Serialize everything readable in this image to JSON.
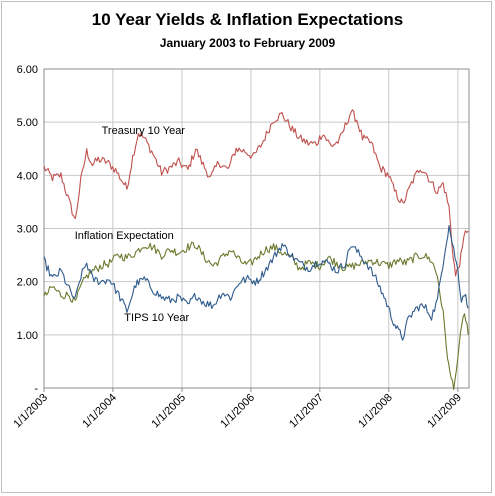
{
  "chart_data": {
    "type": "line",
    "title": "10 Year Yields & Inflation Expectations",
    "subtitle": "January 2003  to February 2009",
    "xlabel": "",
    "ylabel": "",
    "ylim": [
      0,
      6
    ],
    "yticks": [
      {
        "value": 0,
        "label": "-"
      },
      {
        "value": 1,
        "label": "1.00"
      },
      {
        "value": 2,
        "label": "2.00"
      },
      {
        "value": 3,
        "label": "3.00"
      },
      {
        "value": 4,
        "label": "4.00"
      },
      {
        "value": 5,
        "label": "5.00"
      },
      {
        "value": 6,
        "label": "6.00"
      }
    ],
    "xlim": [
      "2003-01-01",
      "2009-03-01"
    ],
    "xticks": [
      {
        "date": "2003-01-01",
        "label": "1/1/2003"
      },
      {
        "date": "2004-01-01",
        "label": "1/1/2004"
      },
      {
        "date": "2005-01-01",
        "label": "1/1/2005"
      },
      {
        "date": "2006-01-01",
        "label": "1/1/2006"
      },
      {
        "date": "2007-01-01",
        "label": "1/1/2007"
      },
      {
        "date": "2008-01-01",
        "label": "1/1/2008"
      },
      {
        "date": "2009-01-01",
        "label": "1/1/2009"
      }
    ],
    "grid": "horizontal",
    "legend": "none",
    "series": [
      {
        "name": "Treasury 10 Year",
        "color": "#c0504d",
        "points": [
          [
            "2003-01-01",
            4.15
          ],
          [
            "2003-02-15",
            3.95
          ],
          [
            "2003-04-01",
            4.0
          ],
          [
            "2003-05-15",
            3.5
          ],
          [
            "2003-06-15",
            3.15
          ],
          [
            "2003-07-15",
            3.9
          ],
          [
            "2003-08-15",
            4.45
          ],
          [
            "2003-09-15",
            4.2
          ],
          [
            "2003-10-15",
            4.3
          ],
          [
            "2003-12-01",
            4.25
          ],
          [
            "2004-01-15",
            4.1
          ],
          [
            "2004-03-15",
            3.75
          ],
          [
            "2004-04-15",
            4.35
          ],
          [
            "2004-05-15",
            4.8
          ],
          [
            "2004-06-15",
            4.7
          ],
          [
            "2004-08-01",
            4.4
          ],
          [
            "2004-09-15",
            4.05
          ],
          [
            "2004-11-01",
            4.15
          ],
          [
            "2004-12-15",
            4.25
          ],
          [
            "2005-02-01",
            4.1
          ],
          [
            "2005-03-15",
            4.5
          ],
          [
            "2005-04-15",
            4.25
          ],
          [
            "2005-06-01",
            3.95
          ],
          [
            "2005-07-15",
            4.25
          ],
          [
            "2005-09-01",
            4.1
          ],
          [
            "2005-10-15",
            4.5
          ],
          [
            "2005-12-01",
            4.45
          ],
          [
            "2006-01-15",
            4.35
          ],
          [
            "2006-03-01",
            4.6
          ],
          [
            "2006-05-01",
            5.05
          ],
          [
            "2006-06-15",
            5.15
          ],
          [
            "2006-08-01",
            4.9
          ],
          [
            "2006-09-15",
            4.7
          ],
          [
            "2006-11-01",
            4.6
          ],
          [
            "2006-12-15",
            4.6
          ],
          [
            "2007-01-15",
            4.8
          ],
          [
            "2007-03-01",
            4.55
          ],
          [
            "2007-04-15",
            4.65
          ],
          [
            "2007-06-15",
            5.2
          ],
          [
            "2007-07-15",
            5.05
          ],
          [
            "2007-08-15",
            4.7
          ],
          [
            "2007-10-01",
            4.6
          ],
          [
            "2007-11-15",
            4.15
          ],
          [
            "2008-01-01",
            4.0
          ],
          [
            "2008-02-01",
            3.7
          ],
          [
            "2008-03-15",
            3.45
          ],
          [
            "2008-05-01",
            3.85
          ],
          [
            "2008-06-15",
            4.15
          ],
          [
            "2008-07-15",
            4.05
          ],
          [
            "2008-08-15",
            3.85
          ],
          [
            "2008-09-15",
            3.7
          ],
          [
            "2008-10-15",
            3.85
          ],
          [
            "2008-11-15",
            3.4
          ],
          [
            "2008-12-01",
            2.7
          ],
          [
            "2008-12-20",
            2.1
          ],
          [
            "2009-01-10",
            2.35
          ],
          [
            "2009-01-25",
            2.6
          ],
          [
            "2009-02-10",
            3.0
          ],
          [
            "2009-02-25",
            2.95
          ]
        ]
      },
      {
        "name": "Inflation Expectation",
        "color": "#6b7a2e",
        "points": [
          [
            "2003-01-01",
            1.7
          ],
          [
            "2003-02-15",
            1.9
          ],
          [
            "2003-04-01",
            1.75
          ],
          [
            "2003-05-15",
            1.75
          ],
          [
            "2003-06-15",
            1.6
          ],
          [
            "2003-07-15",
            1.9
          ],
          [
            "2003-08-15",
            2.1
          ],
          [
            "2003-09-15",
            2.2
          ],
          [
            "2003-11-01",
            2.3
          ],
          [
            "2003-12-15",
            2.35
          ],
          [
            "2004-02-01",
            2.5
          ],
          [
            "2004-03-15",
            2.45
          ],
          [
            "2004-05-01",
            2.55
          ],
          [
            "2004-06-15",
            2.7
          ],
          [
            "2004-08-01",
            2.65
          ],
          [
            "2004-09-15",
            2.5
          ],
          [
            "2004-11-01",
            2.6
          ],
          [
            "2004-12-15",
            2.55
          ],
          [
            "2005-02-01",
            2.65
          ],
          [
            "2005-03-15",
            2.7
          ],
          [
            "2005-05-01",
            2.45
          ],
          [
            "2005-06-15",
            2.3
          ],
          [
            "2005-08-01",
            2.45
          ],
          [
            "2005-09-15",
            2.6
          ],
          [
            "2005-11-01",
            2.4
          ],
          [
            "2005-12-15",
            2.3
          ],
          [
            "2006-02-01",
            2.45
          ],
          [
            "2006-03-15",
            2.6
          ],
          [
            "2006-05-01",
            2.65
          ],
          [
            "2006-06-15",
            2.55
          ],
          [
            "2006-08-01",
            2.45
          ],
          [
            "2006-09-15",
            2.25
          ],
          [
            "2006-11-01",
            2.35
          ],
          [
            "2007-01-01",
            2.3
          ],
          [
            "2007-02-15",
            2.45
          ],
          [
            "2007-04-01",
            2.35
          ],
          [
            "2007-05-15",
            2.25
          ],
          [
            "2007-07-01",
            2.3
          ],
          [
            "2007-08-15",
            2.35
          ],
          [
            "2007-10-01",
            2.4
          ],
          [
            "2007-11-15",
            2.35
          ],
          [
            "2008-01-01",
            2.3
          ],
          [
            "2008-02-15",
            2.4
          ],
          [
            "2008-04-01",
            2.35
          ],
          [
            "2008-05-15",
            2.45
          ],
          [
            "2008-07-01",
            2.5
          ],
          [
            "2008-08-15",
            2.4
          ],
          [
            "2008-09-15",
            2.1
          ],
          [
            "2008-10-15",
            1.4
          ],
          [
            "2008-11-01",
            0.8
          ],
          [
            "2008-11-20",
            0.25
          ],
          [
            "2008-12-10",
            0.05
          ],
          [
            "2009-01-01",
            0.5
          ],
          [
            "2009-01-20",
            1.2
          ],
          [
            "2009-02-05",
            1.4
          ],
          [
            "2009-02-25",
            1.0
          ]
        ]
      },
      {
        "name": "TIPS 10 Year",
        "color": "#2f5b8c",
        "points": [
          [
            "2003-01-01",
            2.4
          ],
          [
            "2003-02-15",
            2.05
          ],
          [
            "2003-04-01",
            2.2
          ],
          [
            "2003-05-15",
            1.85
          ],
          [
            "2003-06-15",
            1.65
          ],
          [
            "2003-07-15",
            2.1
          ],
          [
            "2003-08-15",
            2.35
          ],
          [
            "2003-09-15",
            2.05
          ],
          [
            "2003-11-01",
            2.0
          ],
          [
            "2003-12-15",
            2.05
          ],
          [
            "2004-02-01",
            1.75
          ],
          [
            "2004-03-15",
            1.45
          ],
          [
            "2004-05-01",
            1.95
          ],
          [
            "2004-06-15",
            2.05
          ],
          [
            "2004-08-01",
            1.85
          ],
          [
            "2004-09-15",
            1.7
          ],
          [
            "2004-11-01",
            1.65
          ],
          [
            "2004-12-15",
            1.7
          ],
          [
            "2005-02-01",
            1.55
          ],
          [
            "2005-03-15",
            1.75
          ],
          [
            "2005-05-01",
            1.6
          ],
          [
            "2005-06-15",
            1.55
          ],
          [
            "2005-08-01",
            1.8
          ],
          [
            "2005-09-15",
            1.7
          ],
          [
            "2005-11-01",
            2.0
          ],
          [
            "2005-12-15",
            2.05
          ],
          [
            "2006-02-01",
            2.0
          ],
          [
            "2006-03-15",
            2.2
          ],
          [
            "2006-05-01",
            2.45
          ],
          [
            "2006-06-15",
            2.7
          ],
          [
            "2006-08-01",
            2.5
          ],
          [
            "2006-09-15",
            2.35
          ],
          [
            "2006-11-01",
            2.25
          ],
          [
            "2007-01-01",
            2.4
          ],
          [
            "2007-02-15",
            2.35
          ],
          [
            "2007-04-01",
            2.2
          ],
          [
            "2007-05-15",
            2.35
          ],
          [
            "2007-06-15",
            2.7
          ],
          [
            "2007-08-01",
            2.5
          ],
          [
            "2007-09-15",
            2.3
          ],
          [
            "2007-11-01",
            2.0
          ],
          [
            "2007-12-15",
            1.65
          ],
          [
            "2008-01-20",
            1.3
          ],
          [
            "2008-02-15",
            1.1
          ],
          [
            "2008-03-15",
            0.95
          ],
          [
            "2008-04-15",
            1.3
          ],
          [
            "2008-05-15",
            1.45
          ],
          [
            "2008-06-15",
            1.55
          ],
          [
            "2008-07-15",
            1.5
          ],
          [
            "2008-08-15",
            1.35
          ],
          [
            "2008-09-15",
            1.65
          ],
          [
            "2008-10-20",
            2.5
          ],
          [
            "2008-11-15",
            3.05
          ],
          [
            "2008-12-10",
            2.6
          ],
          [
            "2009-01-01",
            2.2
          ],
          [
            "2009-01-20",
            1.65
          ],
          [
            "2009-02-05",
            1.8
          ],
          [
            "2009-02-25",
            1.5
          ]
        ]
      }
    ],
    "annotations": [
      {
        "text": "Treasury 10 Year",
        "series": "Treasury 10 Year",
        "date": "2004-06-10",
        "value": 4.78
      },
      {
        "text": "Inflation Expectation",
        "series": "Inflation Expectation",
        "date": "2004-03-01",
        "value": 2.8
      },
      {
        "text": "TIPS 10 Year",
        "series": "TIPS 10 Year",
        "date": "2004-08-20",
        "value": 1.26
      }
    ]
  }
}
